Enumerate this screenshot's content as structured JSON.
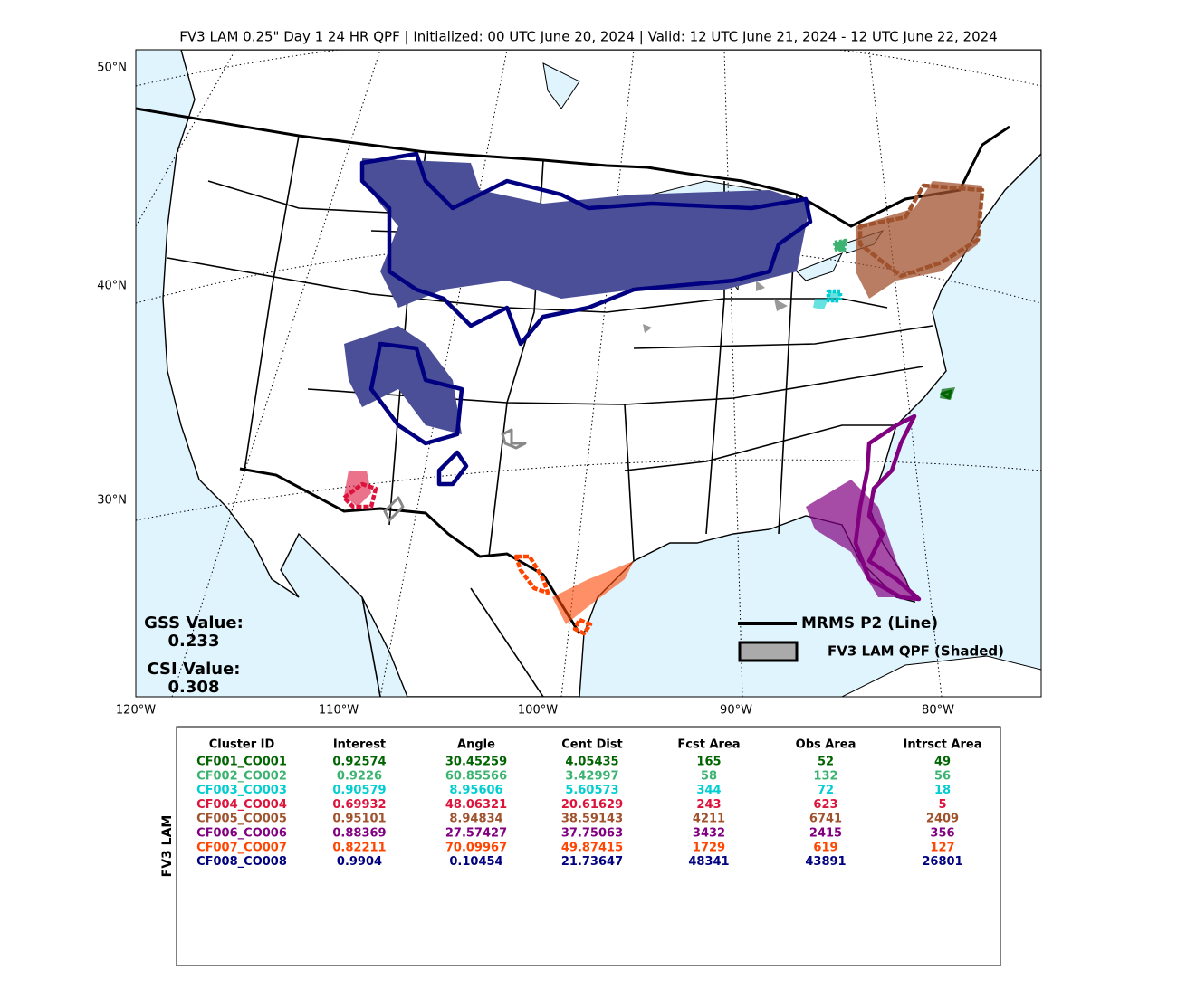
{
  "header": {
    "title": "FV3 LAM 0.25\" Day 1 24 HR QPF | Initialized: 00 UTC June 20, 2024 | Valid: 12 UTC June 21, 2024 - 12 UTC June 22, 2024"
  },
  "map": {
    "lat_labels": [
      "50°N",
      "40°N",
      "30°N"
    ],
    "lon_labels": [
      "120°W",
      "110°W",
      "100°W",
      "90°W",
      "80°W"
    ],
    "scores": {
      "gss_label": "GSS Value:",
      "gss_value": "0.233",
      "csi_label": "CSI Value:",
      "csi_value": "0.308"
    },
    "legend": {
      "line": "MRMS P2 (Line)",
      "shaded": "FV3 LAM QPF (Shaded)"
    }
  },
  "table": {
    "side_label": "FV3 LAM",
    "columns": [
      "Cluster ID",
      "Interest",
      "Angle",
      "Cent Dist",
      "Fcst Area",
      "Obs Area",
      "Intrsct Area"
    ],
    "rows": [
      {
        "color": "#006400",
        "cells": [
          "CF001_CO001",
          "0.92574",
          "30.45259",
          "4.05435",
          "165",
          "52",
          "49"
        ]
      },
      {
        "color": "#3cb371",
        "cells": [
          "CF002_CO002",
          "0.9226",
          "60.85566",
          "3.42997",
          "58",
          "132",
          "56"
        ]
      },
      {
        "color": "#00ced1",
        "cells": [
          "CF003_CO003",
          "0.90579",
          "8.95606",
          "5.60573",
          "344",
          "72",
          "18"
        ]
      },
      {
        "color": "#dc143c",
        "cells": [
          "CF004_CO004",
          "0.69932",
          "48.06321",
          "20.61629",
          "243",
          "623",
          "5"
        ]
      },
      {
        "color": "#a0522d",
        "cells": [
          "CF005_CO005",
          "0.95101",
          "8.94834",
          "38.59143",
          "4211",
          "6741",
          "2409"
        ]
      },
      {
        "color": "#800080",
        "cells": [
          "CF006_CO006",
          "0.88369",
          "27.57427",
          "37.75063",
          "3432",
          "2415",
          "356"
        ]
      },
      {
        "color": "#ff4500",
        "cells": [
          "CF007_CO007",
          "0.82211",
          "70.09967",
          "49.87415",
          "1729",
          "619",
          "127"
        ]
      },
      {
        "color": "#000080",
        "cells": [
          "CF008_CO008",
          "0.9904",
          "0.10454",
          "21.73647",
          "48341",
          "43891",
          "26801"
        ]
      }
    ]
  }
}
